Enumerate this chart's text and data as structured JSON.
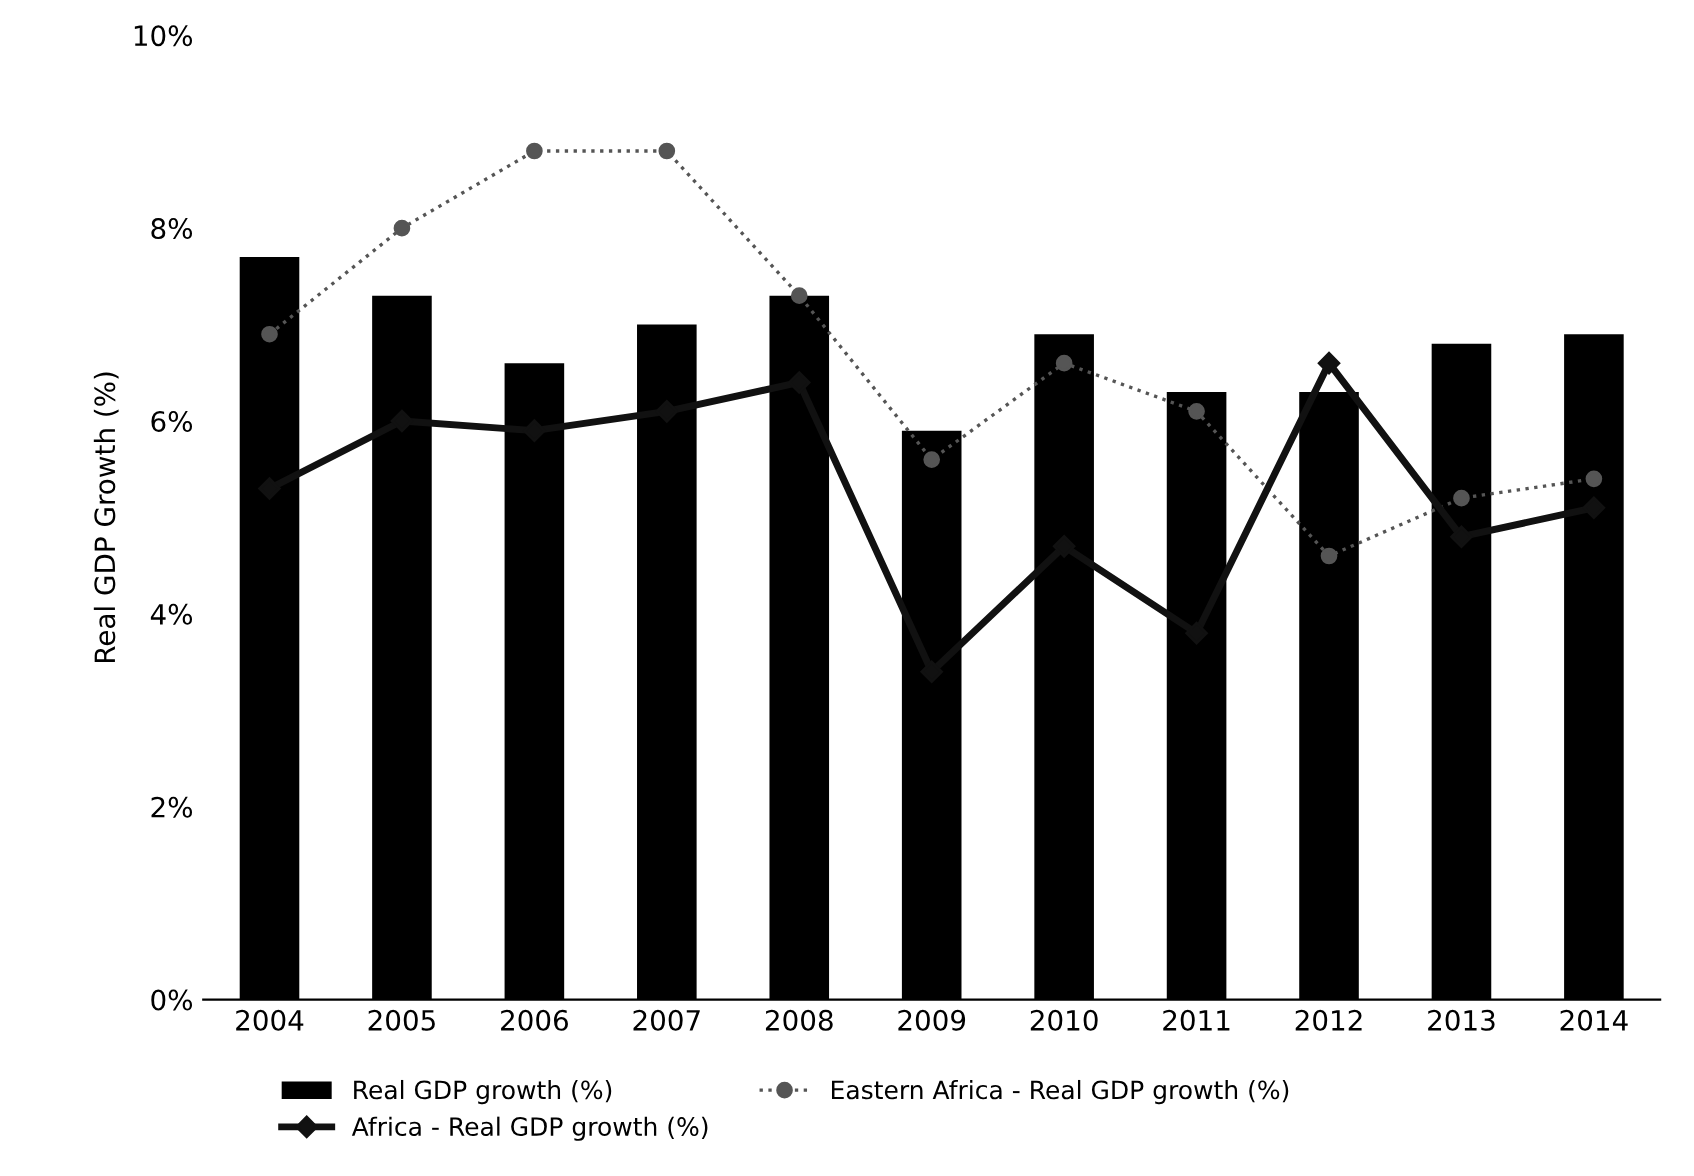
{
  "chart_data": {
    "type": "bar",
    "ylabel": "Real GDP Growth (%)",
    "categories": [
      "2004",
      "2005",
      "2006",
      "2007",
      "2008",
      "2009",
      "2010",
      "2011",
      "2012",
      "2013",
      "2014"
    ],
    "series": [
      {
        "name": "Real GDP growth (%)",
        "color": "#000000",
        "values": [
          7.7,
          7.3,
          6.6,
          7.0,
          7.3,
          5.9,
          6.9,
          6.3,
          6.3,
          6.8,
          6.9
        ]
      },
      {
        "name": "Eastern Africa - Real GDP growth (%)",
        "type": "line",
        "color": "#555555",
        "marker": "circle",
        "line_style": "dotted",
        "values": [
          6.9,
          8.0,
          8.8,
          8.8,
          7.3,
          5.6,
          6.6,
          6.1,
          4.6,
          5.2,
          5.4
        ]
      },
      {
        "name": "Africa - Real GDP growth (%)",
        "type": "line",
        "color": "#111111",
        "marker": "diamond",
        "line_style": "solid",
        "values": [
          5.3,
          6.0,
          5.9,
          6.1,
          6.4,
          3.4,
          4.7,
          3.8,
          6.6,
          4.8,
          5.1
        ]
      }
    ],
    "ylim": [
      0,
      10
    ],
    "yticks": [
      {
        "value": 0,
        "label": "0%"
      },
      {
        "value": 2,
        "label": "2%"
      },
      {
        "value": 4,
        "label": "4%"
      },
      {
        "value": 6,
        "label": "6%"
      },
      {
        "value": 8,
        "label": "8%"
      },
      {
        "value": 10,
        "label": "10%"
      }
    ],
    "grid": false,
    "legend": "bottom"
  }
}
